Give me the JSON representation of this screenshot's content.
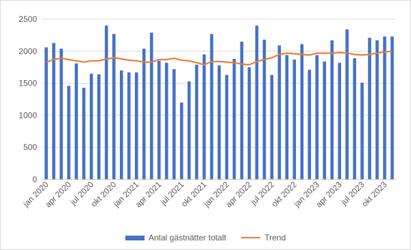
{
  "chart_data": {
    "type": "bar",
    "categories": [
      "jan 2020",
      "feb 2020",
      "mar 2020",
      "apr 2020",
      "maj 2020",
      "jun 2020",
      "jul 2020",
      "aug 2020",
      "sep 2020",
      "okt 2020",
      "nov 2020",
      "dec 2020",
      "jan 2021",
      "feb 2021",
      "mar 2021",
      "apr 2021",
      "maj 2021",
      "jun 2021",
      "jul 2021",
      "aug 2021",
      "sep 2021",
      "okt 2021",
      "nov 2021",
      "dec 2021",
      "jan 2022",
      "feb 2022",
      "mar 2022",
      "apr 2022",
      "maj 2022",
      "jun 2022",
      "jul 2022",
      "aug 2022",
      "sep 2022",
      "okt 2022",
      "nov 2022",
      "dec 2022",
      "jan 2023",
      "feb 2023",
      "mar 2023",
      "apr 2023",
      "maj 2023",
      "jun 2023",
      "jul 2023",
      "aug 2023",
      "sep 2023",
      "okt 2023",
      "nov 2023"
    ],
    "tick_labels": [
      "jan 2020",
      "apr 2020",
      "jul 2020",
      "okt 2020",
      "jan 2021",
      "apr 2021",
      "jul 2021",
      "okt 2021",
      "jan 2022",
      "apr 2022",
      "jul 2022",
      "okt 2022",
      "jan 2023",
      "apr 2023",
      "jul 2023",
      "okt 2023"
    ],
    "series": [
      {
        "name": "Antal gästnätter totalt",
        "type": "bar",
        "color": "#4472c4",
        "values": [
          2060,
          2130,
          2040,
          1460,
          1810,
          1430,
          1650,
          1640,
          2400,
          2270,
          1700,
          1670,
          1670,
          2040,
          2290,
          1850,
          1820,
          1720,
          1200,
          1530,
          1790,
          1950,
          2270,
          1780,
          1630,
          1880,
          2150,
          1750,
          2400,
          2180,
          1630,
          2090,
          1940,
          1870,
          2110,
          1710,
          1940,
          1840,
          2170,
          1820,
          2340,
          1890,
          1510,
          2210,
          2170,
          2230,
          2230
        ]
      },
      {
        "name": "Trend",
        "type": "line",
        "color": "#ed7d31",
        "values": [
          1830,
          1870,
          1890,
          1870,
          1850,
          1830,
          1850,
          1850,
          1880,
          1900,
          1880,
          1860,
          1850,
          1830,
          1830,
          1870,
          1870,
          1890,
          1860,
          1850,
          1820,
          1790,
          1840,
          1840,
          1830,
          1820,
          1800,
          1790,
          1840,
          1870,
          1900,
          1950,
          1970,
          1960,
          1950,
          1940,
          1970,
          1970,
          1970,
          1980,
          1970,
          1950,
          1940,
          1950,
          1970,
          1990,
          2000
        ]
      }
    ],
    "ylim": [
      0,
      2500
    ],
    "yticks": [
      "0",
      "500",
      "1000",
      "1500",
      "2000",
      "2500"
    ],
    "grid": true,
    "legend_position": "bottom",
    "title": "",
    "xlabel": "",
    "ylabel": ""
  },
  "legend": {
    "bar_label": "Antal gästnätter totalt",
    "line_label": "Trend"
  }
}
